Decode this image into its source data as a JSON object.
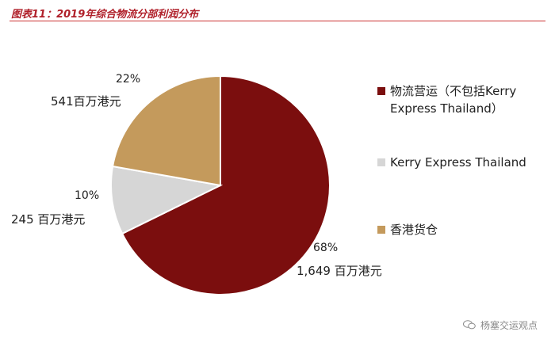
{
  "title": "图表11：2019年综合物流分部利润分布",
  "watermark": "杨塞交运观点",
  "chart_data": {
    "type": "pie",
    "title": "图表11：2019年综合物流分部利润分布",
    "slices": [
      {
        "name": "物流营运（不包括Kerry Express Thailand）",
        "value": 1649,
        "percent": "68%",
        "amount_label": "1,649 百万港元",
        "color": "#7b0e0e"
      },
      {
        "name": "Kerry Express Thailand",
        "value": 245,
        "percent": "10%",
        "amount_label": "245 百万港元",
        "color": "#d6d6d6"
      },
      {
        "name": "香港货仓",
        "value": 541,
        "percent": "22%",
        "amount_label": "541百万港元",
        "color": "#c49a5c"
      }
    ],
    "legend_position": "right"
  }
}
